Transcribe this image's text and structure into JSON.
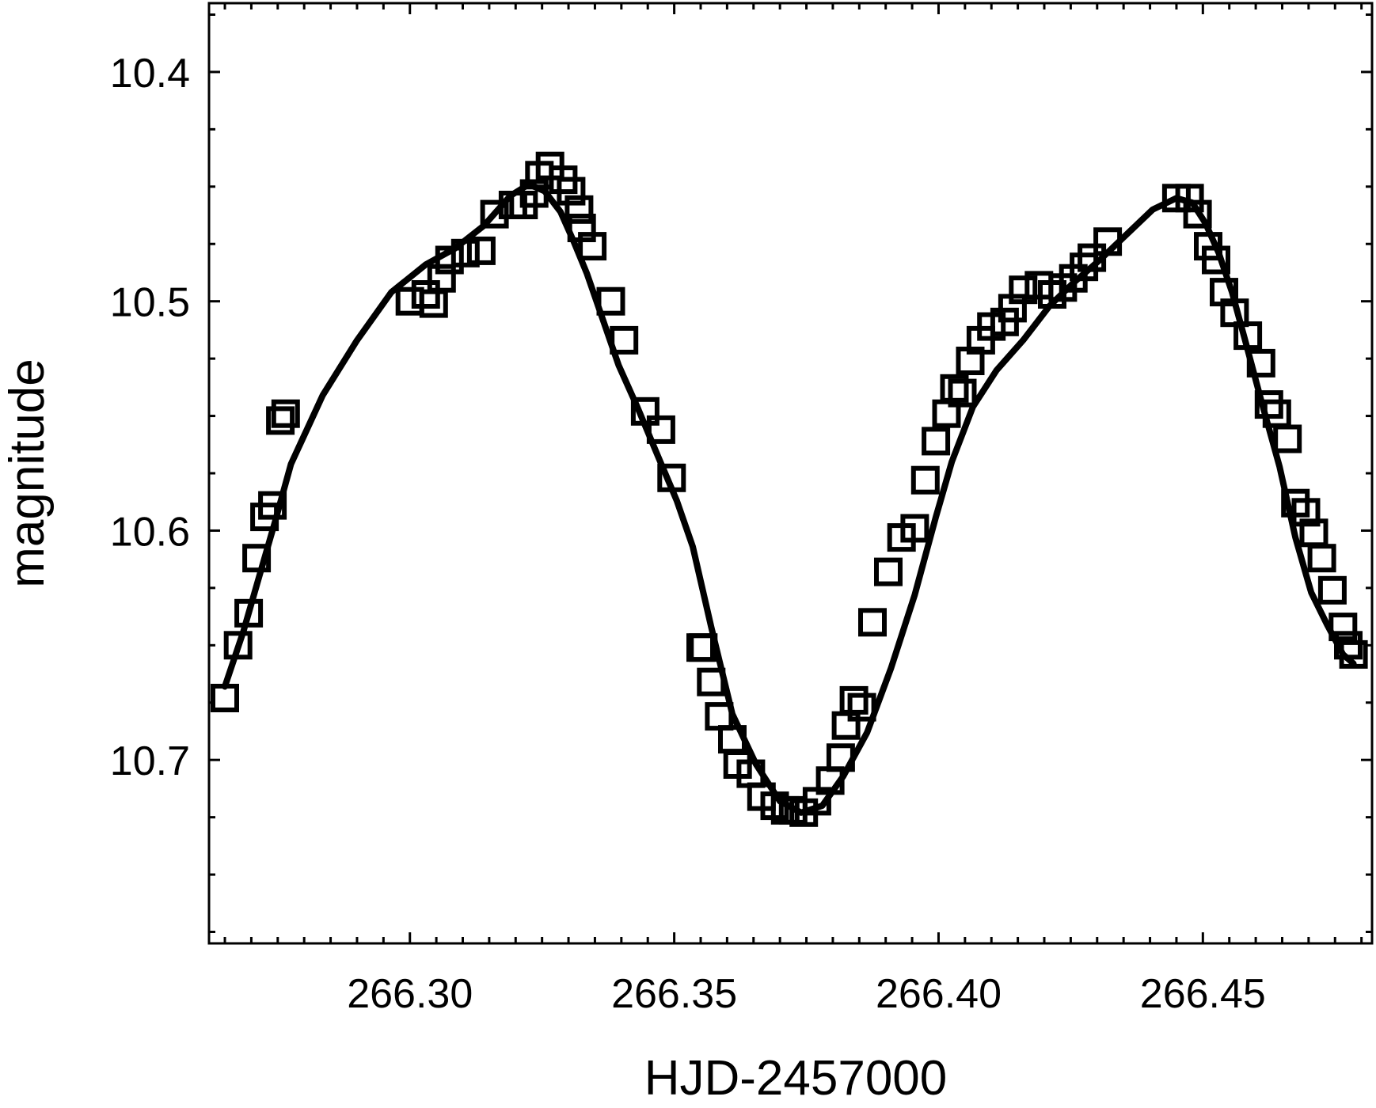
{
  "chart_data": {
    "type": "scatter",
    "xlabel": "HJD-2457000",
    "ylabel": "magnitude",
    "xlim": [
      266.262,
      266.482
    ],
    "ylim": [
      10.78,
      10.37
    ],
    "y_inverted": true,
    "grid": false,
    "x_ticks": [
      "266.30",
      "266.35",
      "266.40",
      "266.45"
    ],
    "x_tick_values": [
      266.3,
      266.35,
      266.4,
      266.45
    ],
    "y_ticks": [
      "10.4",
      "10.5",
      "10.6",
      "10.7"
    ],
    "y_tick_values": [
      10.4,
      10.5,
      10.6,
      10.7
    ],
    "series": [
      {
        "marker": "open-square",
        "x": [
          266.265,
          266.2675,
          266.2695,
          266.271,
          266.2725,
          266.274,
          266.2755,
          266.2765,
          266.3,
          266.303,
          266.3045,
          266.306,
          266.3075,
          266.3105,
          266.3135,
          266.316,
          266.3195,
          266.3215,
          266.3235,
          266.3245,
          266.3265,
          266.329,
          266.3305,
          266.332,
          266.3325,
          266.3345,
          266.338,
          266.3405,
          266.3445,
          266.3475,
          266.3495,
          266.355,
          266.3555,
          266.357,
          266.3585,
          266.361,
          266.362,
          266.3645,
          266.3665,
          266.369,
          266.371,
          266.3725,
          266.3745,
          266.377,
          266.3795,
          266.3815,
          266.3825,
          266.384,
          266.3855,
          266.3875,
          266.3905,
          266.393,
          266.3955,
          266.3975,
          266.3995,
          266.4015,
          266.403,
          266.4045,
          266.406,
          266.408,
          266.41,
          266.4125,
          266.414,
          266.416,
          266.419,
          266.4215,
          266.4235,
          266.4255,
          266.4275,
          266.429,
          266.432,
          266.445,
          266.4475,
          266.449,
          266.451,
          266.4525,
          266.454,
          266.456,
          266.4585,
          266.461,
          266.4625,
          266.464,
          266.466,
          266.4675,
          266.4695,
          266.471,
          266.4725,
          266.4745,
          266.4765,
          266.4775,
          266.4785
        ],
        "y": [
          10.673,
          10.65,
          10.636,
          10.612,
          10.594,
          10.589,
          10.552,
          10.549,
          10.5,
          10.497,
          10.501,
          10.49,
          10.482,
          10.479,
          10.478,
          10.462,
          10.458,
          10.458,
          10.453,
          10.445,
          10.441,
          10.447,
          10.452,
          10.46,
          10.468,
          10.476,
          10.5,
          10.517,
          10.548,
          10.556,
          10.577,
          10.651,
          10.651,
          10.666,
          10.681,
          10.691,
          10.702,
          10.706,
          10.716,
          10.72,
          10.722,
          10.722,
          10.723,
          10.718,
          10.709,
          10.699,
          10.685,
          10.674,
          10.677,
          10.64,
          10.618,
          10.603,
          10.599,
          10.578,
          10.561,
          10.549,
          10.538,
          10.54,
          10.526,
          10.517,
          10.511,
          10.509,
          10.503,
          10.495,
          10.493,
          10.497,
          10.494,
          10.49,
          10.485,
          10.481,
          10.474,
          10.455,
          10.455,
          10.462,
          10.476,
          10.482,
          10.496,
          10.505,
          10.515,
          10.527,
          10.545,
          10.549,
          10.56,
          10.588,
          10.592,
          10.601,
          10.612,
          10.626,
          10.642,
          10.65,
          10.654
        ]
      },
      {
        "marker": "line",
        "x": [
          266.265,
          266.2685,
          266.2715,
          266.2745,
          266.2775,
          266.2835,
          266.29,
          266.2965,
          266.303,
          266.3085,
          266.314,
          266.319,
          266.3225,
          266.3255,
          266.3285,
          266.331,
          266.3335,
          266.3365,
          266.3395,
          266.343,
          266.347,
          266.3505,
          266.3535,
          266.357,
          266.361,
          266.3655,
          266.37,
          266.374,
          266.378,
          266.382,
          266.3865,
          266.391,
          266.3955,
          266.3995,
          266.4025,
          266.4065,
          266.411,
          266.416,
          266.421,
          266.4255,
          266.4305,
          266.4355,
          266.4405,
          266.445,
          266.448,
          266.4505,
          266.453,
          266.4555,
          266.458,
          266.461,
          266.4645,
          266.4675,
          266.4705,
          266.4735,
          266.4765,
          266.4785
        ],
        "y": [
          10.668,
          10.644,
          10.62,
          10.596,
          10.571,
          10.541,
          10.517,
          10.496,
          10.484,
          10.477,
          10.467,
          10.454,
          10.449,
          10.452,
          10.461,
          10.474,
          10.488,
          10.508,
          10.528,
          10.546,
          10.568,
          10.587,
          10.607,
          10.642,
          10.68,
          10.702,
          10.718,
          10.723,
          10.72,
          10.707,
          10.688,
          10.66,
          10.628,
          10.594,
          10.57,
          10.546,
          10.53,
          10.517,
          10.502,
          10.492,
          10.482,
          10.471,
          10.46,
          10.455,
          10.457,
          10.466,
          10.479,
          10.496,
          10.517,
          10.543,
          10.572,
          10.603,
          10.627,
          10.641,
          10.654,
          10.658
        ]
      }
    ]
  }
}
